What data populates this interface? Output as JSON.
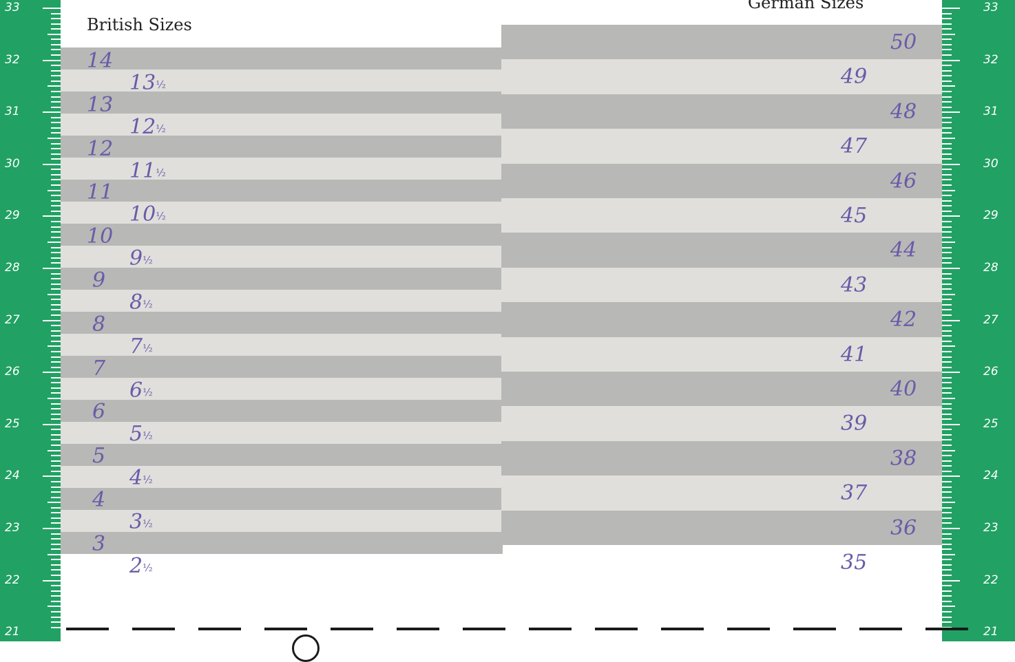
{
  "british": {
    "title": "British Sizes",
    "sizes": [
      {
        "whole": "14",
        "half": ""
      },
      {
        "whole": "13",
        "half": "½"
      },
      {
        "whole": "13",
        "half": ""
      },
      {
        "whole": "12",
        "half": "½"
      },
      {
        "whole": "12",
        "half": ""
      },
      {
        "whole": "11",
        "half": "½"
      },
      {
        "whole": "11",
        "half": ""
      },
      {
        "whole": "10",
        "half": "½"
      },
      {
        "whole": "10",
        "half": ""
      },
      {
        "whole": "9",
        "half": "½"
      },
      {
        "whole": "9",
        "half": ""
      },
      {
        "whole": "8",
        "half": "½"
      },
      {
        "whole": "8",
        "half": ""
      },
      {
        "whole": "7",
        "half": "½"
      },
      {
        "whole": "7",
        "half": ""
      },
      {
        "whole": "6",
        "half": "½"
      },
      {
        "whole": "6",
        "half": ""
      },
      {
        "whole": "5",
        "half": "½"
      },
      {
        "whole": "5",
        "half": ""
      },
      {
        "whole": "4",
        "half": "½"
      },
      {
        "whole": "4",
        "half": ""
      },
      {
        "whole": "3",
        "half": "½"
      },
      {
        "whole": "3",
        "half": ""
      },
      {
        "whole": "2",
        "half": "½"
      }
    ]
  },
  "german": {
    "title": "German Sizes",
    "sizes": [
      "50",
      "49",
      "48",
      "47",
      "46",
      "45",
      "44",
      "43",
      "42",
      "41",
      "40",
      "39",
      "38",
      "37",
      "36",
      "35"
    ]
  },
  "ruler": {
    "labels": [
      "33",
      "32",
      "31",
      "30",
      "29",
      "28",
      "27",
      "26",
      "25",
      "24",
      "23",
      "22",
      "21"
    ]
  },
  "colors": {
    "ruler": "#21a163",
    "band_dark": "#b8b8b6",
    "band_light": "#e0dfdc",
    "size_text": "#6a5ba8"
  }
}
